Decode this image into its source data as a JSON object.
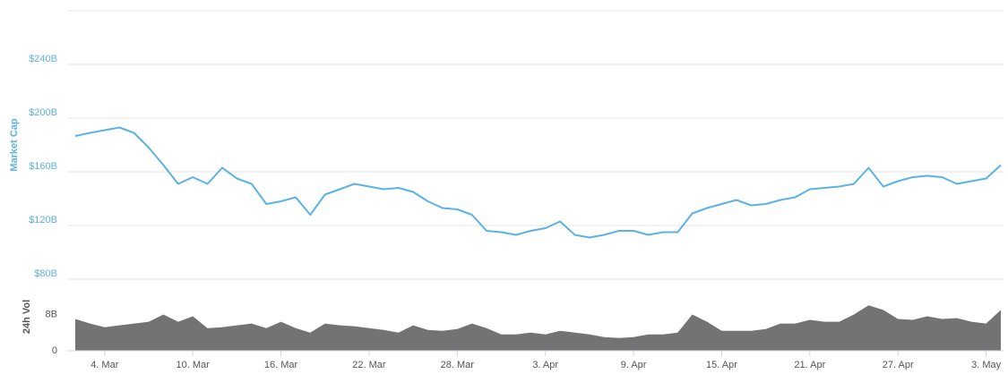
{
  "chart_data": [
    {
      "type": "line",
      "ylabel": "Market Cap",
      "x": [
        "2. Mar",
        "3. Mar",
        "4. Mar",
        "5. Mar",
        "6. Mar",
        "7. Mar",
        "8. Mar",
        "9. Mar",
        "10. Mar",
        "11. Mar",
        "12. Mar",
        "13. Mar",
        "14. Mar",
        "15. Mar",
        "16. Mar",
        "17. Mar",
        "18. Mar",
        "19. Mar",
        "20. Mar",
        "21. Mar",
        "22. Mar",
        "23. Mar",
        "24. Mar",
        "25. Mar",
        "26. Mar",
        "27. Mar",
        "28. Mar",
        "29. Mar",
        "30. Mar",
        "31. Mar",
        "1. Apr",
        "2. Apr",
        "3. Apr",
        "4. Apr",
        "5. Apr",
        "6. Apr",
        "7. Apr",
        "8. Apr",
        "9. Apr",
        "10. Apr",
        "11. Apr",
        "12. Apr",
        "13. Apr",
        "14. Apr",
        "15. Apr",
        "16. Apr",
        "17. Apr",
        "18. Apr",
        "19. Apr",
        "20. Apr",
        "21. Apr",
        "22. Apr",
        "23. Apr",
        "24. Apr",
        "25. Apr",
        "26. Apr",
        "27. Apr",
        "28. Apr",
        "29. Apr",
        "30. Apr",
        "1. May",
        "2. May",
        "3. May",
        "4. May"
      ],
      "series": [
        {
          "name": "Market Cap",
          "color": "#5bb3e3",
          "values": [
            186.7,
            189,
            191,
            193,
            189,
            178,
            165,
            151,
            156,
            151,
            163,
            155,
            151,
            136,
            138,
            141,
            128,
            143,
            147,
            151,
            149,
            147,
            148,
            145,
            138,
            133,
            132,
            128,
            116,
            115,
            113,
            116,
            118,
            123,
            113,
            111,
            113,
            116,
            116,
            113,
            115,
            115,
            129,
            133,
            136,
            139,
            135,
            136,
            139,
            141,
            147,
            148,
            149,
            151,
            163,
            149,
            153,
            156,
            157,
            156,
            151,
            153,
            155,
            165
          ]
        }
      ],
      "ylim": [
        80,
        280
      ],
      "yticks": [
        {
          "value": 80,
          "label": "$80B"
        },
        {
          "value": 120,
          "label": "$120B"
        },
        {
          "value": 160,
          "label": "$160B"
        },
        {
          "value": 200,
          "label": "$200B"
        },
        {
          "value": 240,
          "label": "$240B"
        }
      ],
      "grid": true
    },
    {
      "type": "area",
      "ylabel": "24h Vol",
      "x": [
        "2. Mar",
        "3. Mar",
        "4. Mar",
        "5. Mar",
        "6. Mar",
        "7. Mar",
        "8. Mar",
        "9. Mar",
        "10. Mar",
        "11. Mar",
        "12. Mar",
        "13. Mar",
        "14. Mar",
        "15. Mar",
        "16. Mar",
        "17. Mar",
        "18. Mar",
        "19. Mar",
        "20. Mar",
        "21. Mar",
        "22. Mar",
        "23. Mar",
        "24. Mar",
        "25. Mar",
        "26. Mar",
        "27. Mar",
        "28. Mar",
        "29. Mar",
        "30. Mar",
        "31. Mar",
        "1. Apr",
        "2. Apr",
        "3. Apr",
        "4. Apr",
        "5. Apr",
        "6. Apr",
        "7. Apr",
        "8. Apr",
        "9. Apr",
        "10. Apr",
        "11. Apr",
        "12. Apr",
        "13. Apr",
        "14. Apr",
        "15. Apr",
        "16. Apr",
        "17. Apr",
        "18. Apr",
        "19. Apr",
        "20. Apr",
        "21. Apr",
        "22. Apr",
        "23. Apr",
        "24. Apr",
        "25. Apr",
        "26. Apr",
        "27. Apr",
        "28. Apr",
        "29. Apr",
        "30. Apr",
        "1. May",
        "2. May",
        "3. May",
        "4. May"
      ],
      "series": [
        {
          "name": "24h Vol",
          "color": "#737373",
          "values": [
            7,
            6,
            5.2,
            5.6,
            6,
            6.4,
            8,
            6.4,
            7.6,
            5,
            5.2,
            5.6,
            6,
            5,
            6.4,
            5,
            4,
            6,
            5.6,
            5.4,
            5,
            4.6,
            4,
            5.6,
            4.6,
            4.4,
            4.8,
            6,
            5,
            3.6,
            3.6,
            4,
            3.6,
            4.4,
            4,
            3.6,
            3,
            2.8,
            3,
            3.6,
            3.6,
            4,
            8,
            6.4,
            4.4,
            4.4,
            4.4,
            4.8,
            6,
            6,
            6.8,
            6.4,
            6.4,
            8,
            10,
            9,
            7,
            6.8,
            7.6,
            7,
            7.2,
            6.4,
            6,
            9
          ]
        }
      ],
      "ylim": [
        0,
        15
      ],
      "yticks": [
        0,
        {
          "value": 8,
          "label": "8B"
        }
      ],
      "xticks": [
        "4. Mar",
        "10. Mar",
        "16. Mar",
        "22. Mar",
        "28. Mar",
        "3. Apr",
        "9. Apr",
        "15. Apr",
        "21. Apr",
        "27. Apr",
        "3. May"
      ]
    }
  ]
}
